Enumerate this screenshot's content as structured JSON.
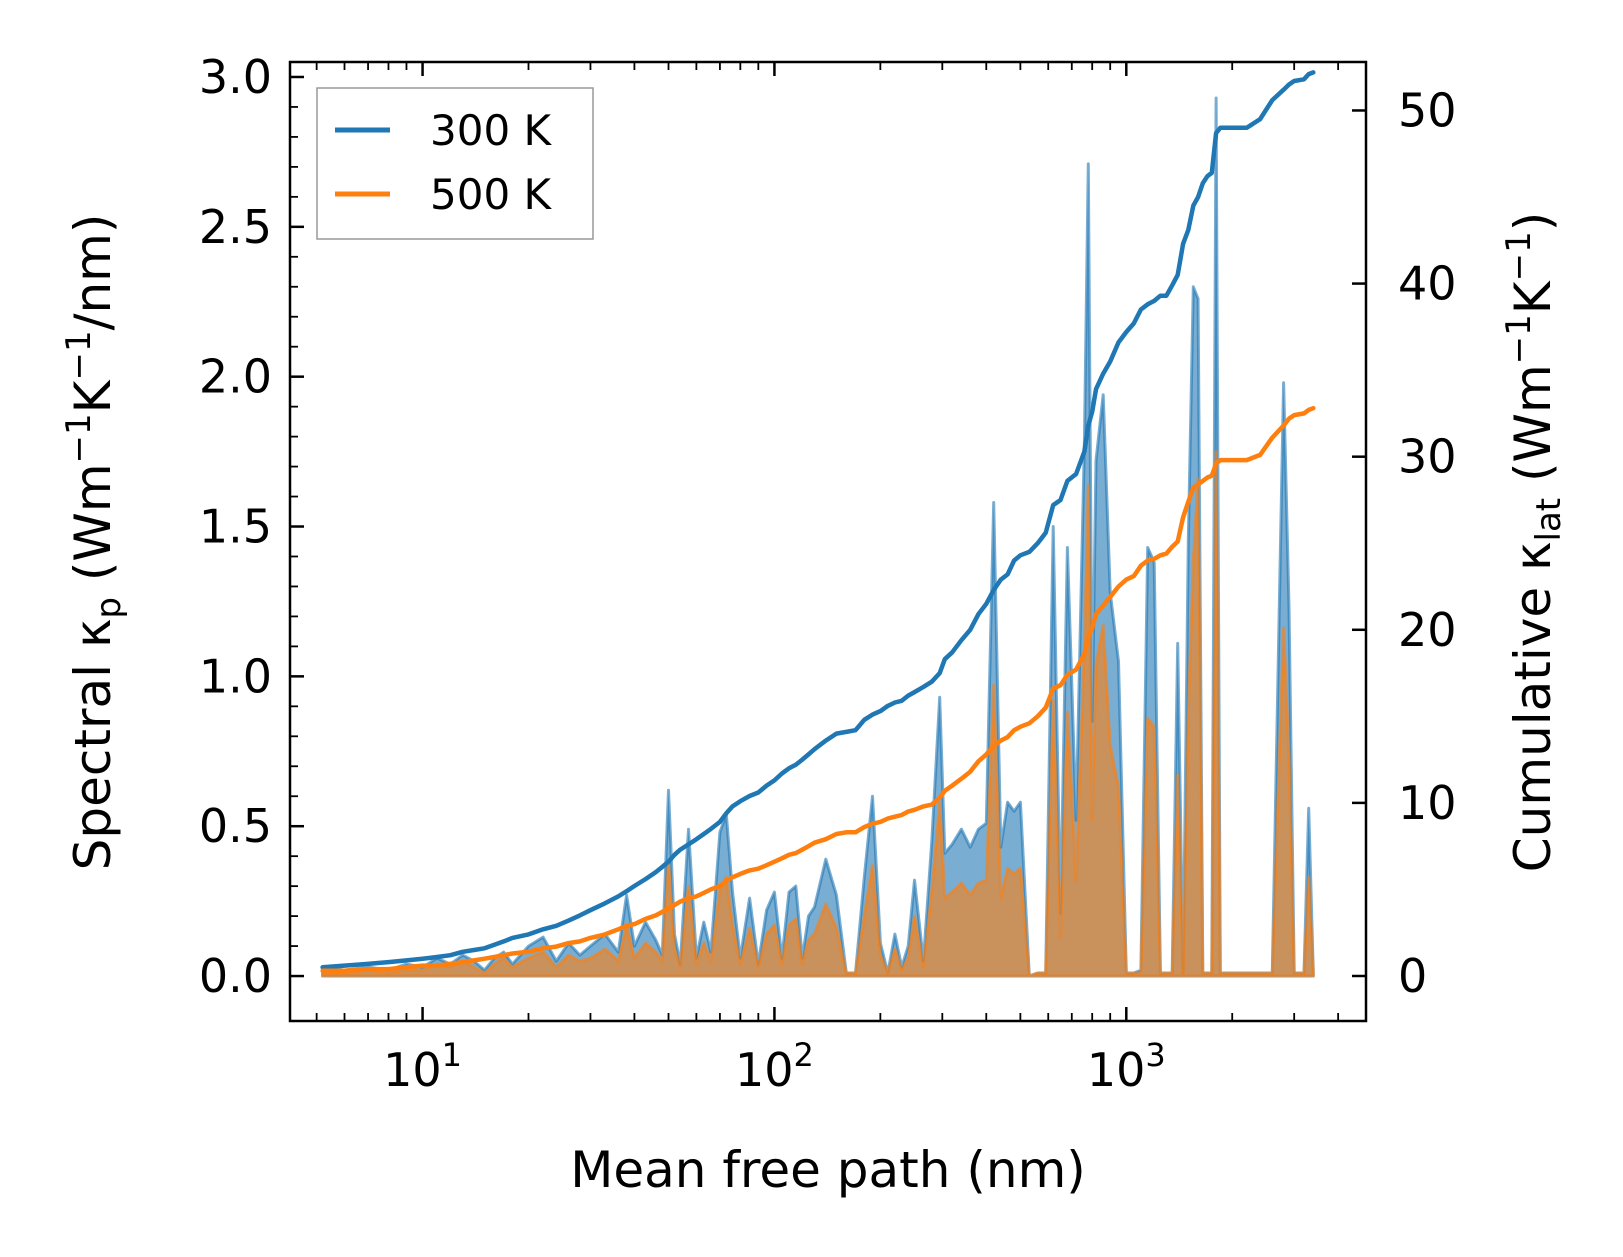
{
  "chart_data": {
    "type": "line",
    "title": "",
    "xlabel": "Mean free path (nm)",
    "xscale": "log",
    "xlim": [
      4.2,
      4800
    ],
    "x_ticks": [
      {
        "value": 10,
        "base": "10",
        "exp": "1"
      },
      {
        "value": 100,
        "base": "10",
        "exp": "2"
      },
      {
        "value": 1000,
        "base": "10",
        "exp": "3"
      }
    ],
    "ylabel_left": {
      "prefix": "Spectral κ",
      "sub": "p",
      "mid": " (Wm",
      "sup1": "−1",
      "mid2": "K",
      "sup2": "−1",
      "suffix": "/nm)"
    },
    "ylabel_right": {
      "prefix": "Cumulative κ",
      "sub": "lat",
      "mid": " (Wm",
      "sup1": "−1",
      "mid2": "K",
      "sup2": "−1",
      "suffix": ")"
    },
    "ylim_left": [
      -0.15,
      3.05
    ],
    "ylim_right": [
      -2.6,
      52.8
    ],
    "y_ticks_left": [
      "0.0",
      "0.5",
      "1.0",
      "1.5",
      "2.0",
      "2.5",
      "3.0"
    ],
    "y_ticks_right": [
      "0",
      "10",
      "20",
      "30",
      "40",
      "50"
    ],
    "legend": {
      "position": "upper-left",
      "entries": [
        "300 K",
        "500 K"
      ]
    },
    "colors": {
      "300 K": "#1f77b4",
      "500 K": "#ff7f0e"
    },
    "spectral_x": [
      5.2,
      6,
      7,
      8,
      9,
      10,
      11,
      12,
      13,
      14,
      15,
      16,
      17,
      18,
      20,
      22,
      24,
      26,
      28,
      30,
      33,
      36,
      38,
      40,
      43,
      46,
      48,
      50,
      52,
      54,
      57,
      60,
      63,
      66,
      70,
      73,
      76,
      80,
      85,
      90,
      95,
      100,
      105,
      110,
      115,
      120,
      125,
      130,
      140,
      150,
      160,
      170,
      180,
      190,
      200,
      210,
      220,
      230,
      240,
      250,
      265,
      280,
      295,
      305,
      320,
      340,
      360,
      380,
      400,
      420,
      440,
      460,
      480,
      500,
      530,
      560,
      590,
      620,
      650,
      680,
      720,
      760,
      780,
      800,
      820,
      860,
      900,
      950,
      1000,
      1050,
      1100,
      1150,
      1200,
      1250,
      1300,
      1350,
      1400,
      1450,
      1500,
      1550,
      1600,
      1650,
      1700,
      1750,
      1800,
      1850,
      1900,
      2000,
      2200,
      2400,
      2600,
      2800,
      2900,
      3000,
      3200,
      3300,
      3400
    ],
    "series": [
      {
        "name": "300 K",
        "spectral": [
          0.03,
          0.02,
          0.03,
          0.02,
          0.04,
          0.03,
          0.06,
          0.04,
          0.07,
          0.05,
          0.02,
          0.06,
          0.08,
          0.04,
          0.1,
          0.13,
          0.05,
          0.11,
          0.07,
          0.1,
          0.14,
          0.08,
          0.27,
          0.1,
          0.18,
          0.12,
          0.07,
          0.62,
          0.14,
          0.04,
          0.49,
          0.06,
          0.18,
          0.08,
          0.48,
          0.54,
          0.28,
          0.06,
          0.26,
          0.04,
          0.22,
          0.28,
          0.06,
          0.28,
          0.3,
          0.06,
          0.2,
          0.23,
          0.39,
          0.27,
          0.01,
          0.01,
          0.33,
          0.6,
          0.11,
          0.01,
          0.14,
          0.03,
          0.1,
          0.32,
          0.05,
          0.45,
          0.93,
          0.41,
          0.44,
          0.49,
          0.43,
          0.49,
          0.51,
          1.58,
          0.43,
          0.58,
          0.55,
          0.58,
          0.0,
          0.01,
          0.01,
          1.5,
          0.21,
          1.43,
          0.52,
          1.78,
          2.71,
          0.85,
          1.72,
          1.94,
          1.28,
          1.05,
          0.01,
          0.01,
          0.02,
          1.43,
          1.38,
          0.01,
          0.01,
          0.01,
          1.11,
          0.01,
          1.45,
          2.3,
          2.26,
          0.01,
          0.01,
          0.01,
          2.93,
          0.01,
          0.01,
          0.01,
          0.01,
          0.01,
          0.01,
          1.98,
          1.23,
          0.01,
          0.01,
          0.56,
          0.01
        ],
        "cumulative": [
          0.5,
          0.6,
          0.7,
          0.8,
          0.9,
          1.0,
          1.1,
          1.2,
          1.4,
          1.5,
          1.6,
          1.8,
          2.0,
          2.2,
          2.4,
          2.7,
          2.9,
          3.2,
          3.5,
          3.8,
          4.2,
          4.6,
          4.9,
          5.2,
          5.6,
          6.0,
          6.3,
          6.6,
          7.0,
          7.3,
          7.6,
          7.9,
          8.2,
          8.5,
          8.9,
          9.4,
          9.8,
          10.1,
          10.4,
          10.6,
          11.0,
          11.3,
          11.7,
          12.0,
          12.2,
          12.5,
          12.8,
          13.1,
          13.6,
          14.0,
          14.1,
          14.2,
          14.8,
          15.1,
          15.3,
          15.6,
          15.8,
          15.9,
          16.2,
          16.4,
          16.7,
          17.0,
          17.5,
          18.3,
          18.7,
          19.4,
          20.0,
          20.9,
          21.5,
          22.3,
          22.9,
          23.2,
          24.0,
          24.3,
          24.5,
          25.0,
          25.6,
          27.2,
          27.5,
          28.6,
          29.0,
          30.3,
          31.8,
          32.6,
          33.9,
          34.8,
          35.5,
          36.6,
          37.2,
          37.7,
          38.5,
          38.8,
          39.0,
          39.3,
          39.3,
          39.9,
          40.5,
          42.3,
          43.1,
          44.5,
          45.0,
          45.8,
          46.2,
          46.4,
          48.7,
          49.0,
          49.0,
          49.0,
          49.0,
          49.5,
          50.6,
          51.2,
          51.5,
          51.7,
          51.8,
          52.1,
          52.2
        ]
      },
      {
        "name": "500 K",
        "spectral": [
          0.01,
          0.01,
          0.02,
          0.01,
          0.02,
          0.02,
          0.04,
          0.03,
          0.05,
          0.03,
          0.01,
          0.04,
          0.06,
          0.03,
          0.06,
          0.08,
          0.03,
          0.07,
          0.05,
          0.06,
          0.09,
          0.05,
          0.17,
          0.06,
          0.11,
          0.08,
          0.05,
          0.38,
          0.09,
          0.03,
          0.3,
          0.04,
          0.11,
          0.05,
          0.29,
          0.33,
          0.17,
          0.04,
          0.16,
          0.03,
          0.14,
          0.17,
          0.04,
          0.17,
          0.19,
          0.04,
          0.12,
          0.14,
          0.24,
          0.16,
          0.01,
          0.01,
          0.2,
          0.37,
          0.07,
          0.01,
          0.09,
          0.02,
          0.06,
          0.2,
          0.03,
          0.28,
          0.58,
          0.26,
          0.28,
          0.31,
          0.27,
          0.31,
          0.32,
          0.97,
          0.26,
          0.36,
          0.34,
          0.36,
          0.0,
          0.01,
          0.01,
          0.92,
          0.13,
          0.88,
          0.32,
          1.09,
          1.64,
          0.52,
          1.04,
          1.17,
          0.77,
          0.63,
          0.01,
          0.01,
          0.01,
          0.86,
          0.83,
          0.01,
          0.01,
          0.01,
          0.67,
          0.01,
          0.87,
          1.38,
          1.66,
          0.01,
          0.01,
          0.01,
          1.75,
          0.01,
          0.01,
          0.01,
          0.01,
          0.01,
          0.01,
          1.16,
          0.73,
          0.01,
          0.01,
          0.33,
          0.01
        ],
        "cumulative": [
          0.3,
          0.3,
          0.4,
          0.4,
          0.5,
          0.6,
          0.6,
          0.7,
          0.8,
          0.9,
          1.0,
          1.1,
          1.2,
          1.3,
          1.4,
          1.6,
          1.7,
          1.9,
          2.0,
          2.2,
          2.4,
          2.7,
          2.9,
          3.0,
          3.3,
          3.5,
          3.7,
          3.9,
          4.1,
          4.3,
          4.5,
          4.6,
          4.8,
          5.0,
          5.2,
          5.5,
          5.7,
          5.9,
          6.1,
          6.2,
          6.4,
          6.6,
          6.8,
          7.0,
          7.1,
          7.3,
          7.5,
          7.7,
          7.9,
          8.2,
          8.3,
          8.3,
          8.6,
          8.8,
          8.9,
          9.1,
          9.2,
          9.3,
          9.5,
          9.6,
          9.8,
          9.9,
          10.3,
          10.7,
          11.0,
          11.4,
          11.8,
          12.4,
          12.8,
          13.3,
          13.6,
          13.8,
          14.2,
          14.4,
          14.6,
          15.0,
          15.5,
          16.6,
          16.8,
          17.4,
          17.7,
          18.6,
          19.6,
          20.1,
          20.9,
          21.4,
          21.9,
          22.5,
          22.9,
          23.1,
          23.7,
          24.0,
          24.1,
          24.3,
          24.4,
          24.8,
          25.1,
          26.5,
          27.4,
          28.2,
          28.4,
          28.6,
          28.8,
          28.9,
          29.6,
          29.8,
          29.8,
          29.8,
          29.8,
          30.1,
          31.1,
          31.8,
          32.2,
          32.4,
          32.5,
          32.7,
          32.8
        ]
      }
    ]
  }
}
